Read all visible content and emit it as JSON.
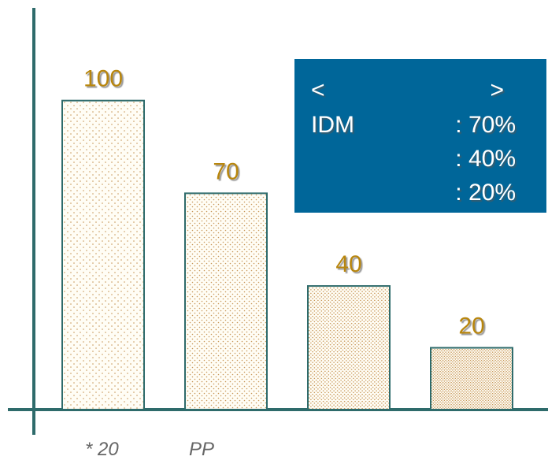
{
  "chart_data": {
    "type": "bar",
    "categories": [
      null,
      null,
      null,
      null
    ],
    "values": [
      100,
      70,
      40,
      20
    ],
    "color": "#c8985a",
    "ylim": [
      0,
      130
    ],
    "box": [
      {
        "left": "<",
        "right": ">"
      },
      {
        "left": "IDM",
        "right": ": 70%"
      },
      {
        "right": ": 40%"
      },
      {
        "right": ": 20%"
      }
    ],
    "footnote": [
      "* 20",
      "PP"
    ]
  }
}
